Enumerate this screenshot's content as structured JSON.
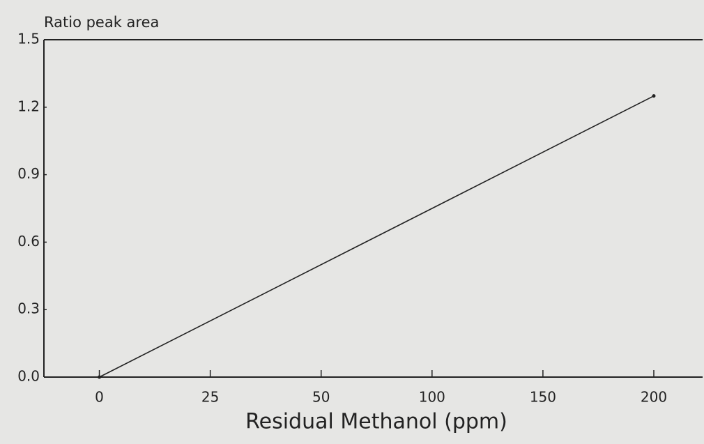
{
  "chart_data": {
    "type": "line",
    "y_label": "Ratio peak area",
    "x_label": "Residual Methanol (ppm)",
    "x": [
      0,
      200
    ],
    "series": [
      {
        "color": "#222222",
        "values": [
          0.0,
          1.25
        ]
      }
    ],
    "xlim": [
      -12.5,
      222
    ],
    "xticks": [
      0,
      25,
      50,
      100,
      150,
      200
    ],
    "ylim": [
      0.0,
      1.5
    ],
    "yticks": [
      {
        "value": 0.0,
        "label": "0.0"
      },
      {
        "value": 0.3,
        "label": "0.3"
      },
      {
        "value": 0.6,
        "label": "0.6"
      },
      {
        "value": 0.9,
        "label": "0.9"
      },
      {
        "value": 1.2,
        "label": "1.2"
      },
      {
        "value": 1.5,
        "label": "1.5"
      }
    ]
  }
}
